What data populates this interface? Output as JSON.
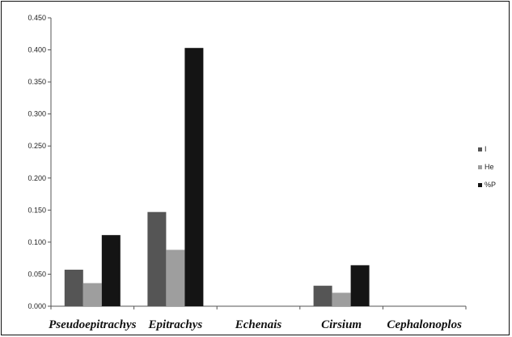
{
  "chart_data": {
    "type": "bar",
    "title": "",
    "xlabel": "",
    "ylabel": "",
    "categories": [
      "Pseudoepitrachys",
      "Epitrachys",
      "Echenais",
      "Cirsium",
      "Cephalonoplos"
    ],
    "series": [
      {
        "name": "I",
        "color": "#555555",
        "values": [
          0.057,
          0.147,
          0.0,
          0.032,
          0.0
        ]
      },
      {
        "name": "He",
        "color": "#9e9e9e",
        "values": [
          0.036,
          0.088,
          0.0,
          0.021,
          0.0
        ]
      },
      {
        "name": "%P",
        "color": "#141414",
        "values": [
          0.111,
          0.403,
          0.0,
          0.064,
          0.0
        ]
      }
    ],
    "ylim": [
      0,
      0.45
    ],
    "yticks": [
      "0.000",
      "0.050",
      "0.100",
      "0.150",
      "0.200",
      "0.250",
      "0.300",
      "0.350",
      "0.400",
      "0.450"
    ],
    "grid": false,
    "legend_position": "right"
  }
}
